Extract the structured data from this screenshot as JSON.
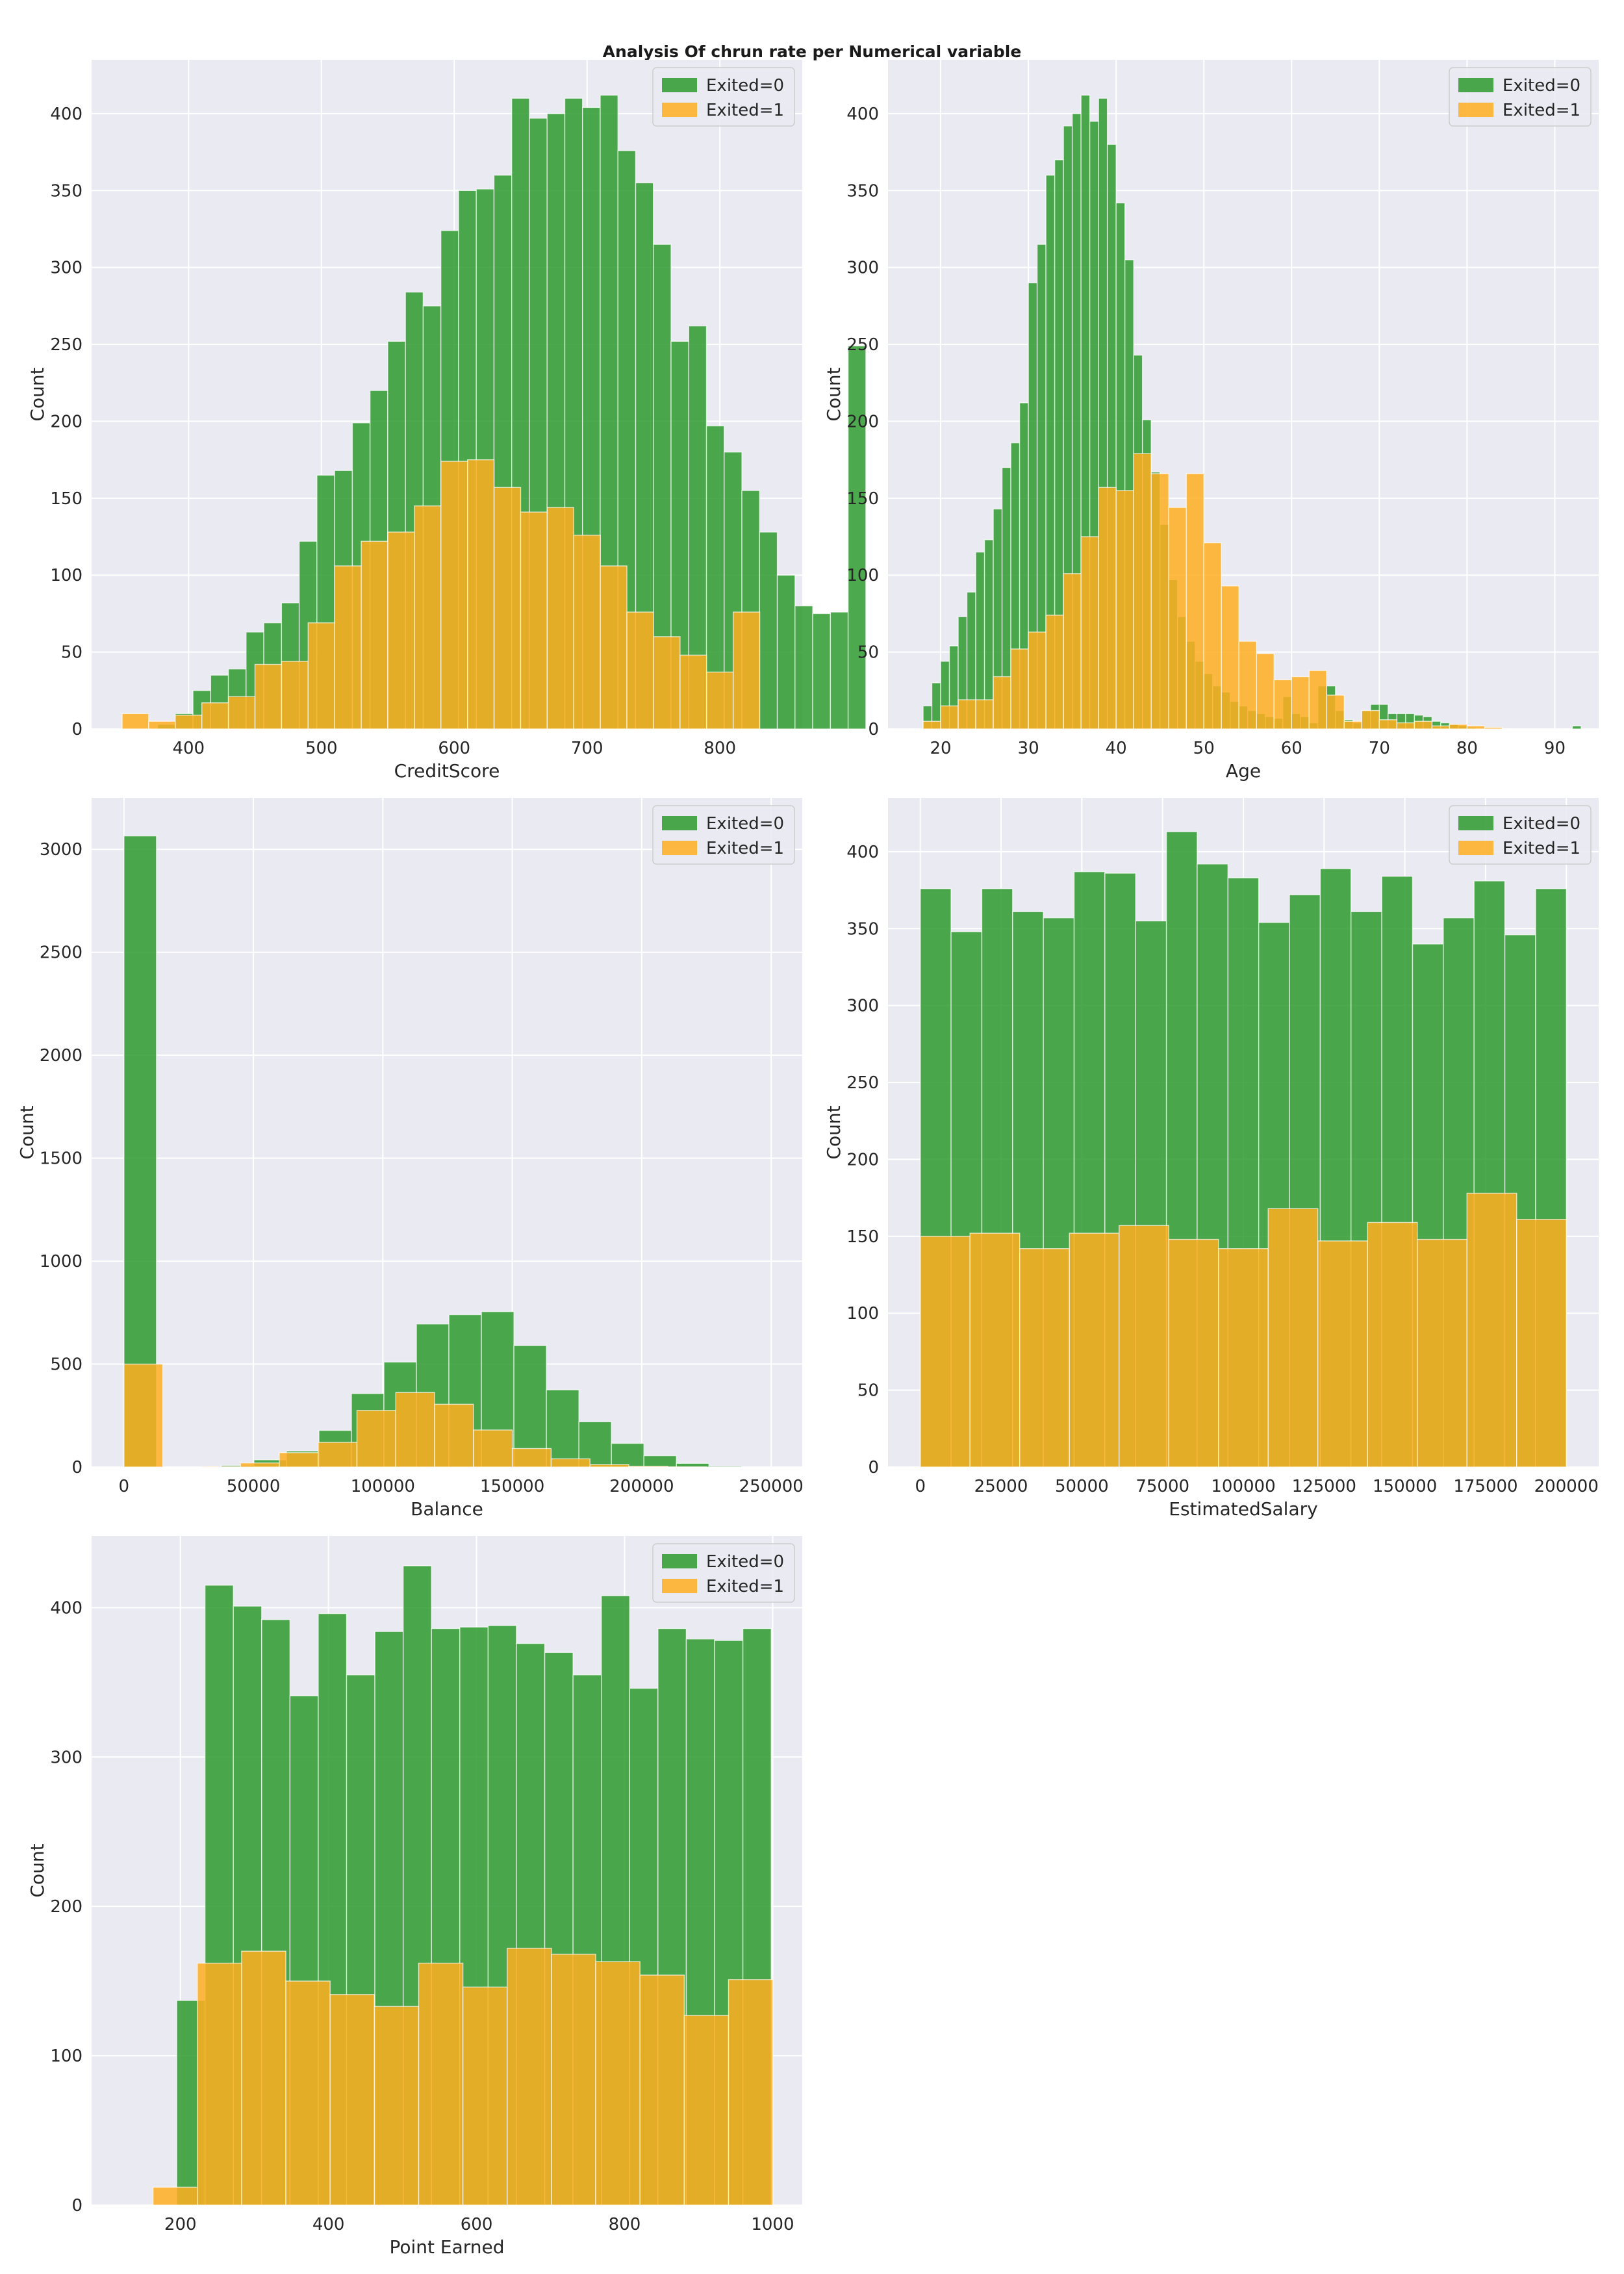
{
  "figure_title": "Analysis Of chrun rate per Numerical variable",
  "colors": {
    "exited0": "#2e9a2e",
    "exited1": "#ffae22",
    "panel_bg": "#eaeaf2",
    "grid": "#ffffff"
  },
  "chart_data": [
    {
      "type": "histogram",
      "xlabel": "CreditScore",
      "ylabel": "Count",
      "xlim": [
        327,
        862
      ],
      "ylim": [
        0,
        435
      ],
      "xticks": [
        400,
        500,
        600,
        700,
        800
      ],
      "yticks": [
        0,
        50,
        100,
        150,
        200,
        250,
        300,
        350,
        400
      ],
      "legend": {
        "position": "top-right",
        "labels": [
          "Exited=0",
          "Exited=1"
        ]
      },
      "series": [
        {
          "name": "Exited=0",
          "bin_start": 350,
          "bin_width": 13.33,
          "values": [
            0,
            0,
            3,
            10,
            25,
            35,
            39,
            63,
            69,
            82,
            122,
            165,
            168,
            199,
            220,
            252,
            284,
            275,
            324,
            350,
            351,
            360,
            410,
            397,
            400,
            410,
            404,
            412,
            376,
            355,
            315,
            252,
            262,
            197,
            180,
            155,
            128,
            100,
            80,
            75,
            76,
            249
          ]
        },
        {
          "name": "Exited=1",
          "bin_start": 350,
          "bin_width": 20.0,
          "values": [
            10,
            5,
            9,
            17,
            21,
            42,
            44,
            69,
            106,
            122,
            128,
            145,
            174,
            175,
            157,
            141,
            144,
            126,
            106,
            76,
            60,
            48,
            37,
            76
          ]
        }
      ]
    },
    {
      "type": "histogram",
      "xlabel": "Age",
      "ylabel": "Count",
      "xlim": [
        14,
        95
      ],
      "ylim": [
        0,
        435
      ],
      "xticks": [
        20,
        30,
        40,
        50,
        60,
        70,
        80,
        90
      ],
      "yticks": [
        0,
        50,
        100,
        150,
        200,
        250,
        300,
        350,
        400
      ],
      "legend": {
        "position": "top-right",
        "labels": [
          "Exited=0",
          "Exited=1"
        ]
      },
      "series": [
        {
          "name": "Exited=0",
          "bin_start": 18,
          "bin_width": 1,
          "values": [
            15,
            30,
            44,
            54,
            73,
            89,
            115,
            123,
            143,
            170,
            186,
            212,
            290,
            315,
            360,
            370,
            392,
            400,
            412,
            395,
            410,
            380,
            342,
            305,
            243,
            201,
            167,
            133,
            97,
            73,
            57,
            44,
            36,
            28,
            24,
            18,
            15,
            12,
            10,
            8,
            7,
            21,
            10,
            8,
            4,
            28,
            28,
            12,
            6,
            4,
            12,
            16,
            16,
            10,
            10,
            10,
            9,
            8,
            5,
            4,
            3,
            2,
            1,
            0,
            0,
            0,
            0,
            0,
            0,
            0,
            0,
            0,
            0,
            0,
            2
          ]
        },
        {
          "name": "Exited=1",
          "bin_start": 18,
          "bin_width": 2,
          "values": [
            5,
            15,
            19,
            19,
            34,
            52,
            63,
            74,
            101,
            125,
            157,
            155,
            179,
            166,
            144,
            166,
            121,
            93,
            57,
            49,
            32,
            34,
            38,
            22,
            5,
            12,
            6,
            4,
            5,
            2,
            3,
            2,
            1
          ]
        }
      ]
    },
    {
      "type": "histogram",
      "xlabel": "Balance",
      "ylabel": "Count",
      "xlim": [
        -12500,
        262000
      ],
      "ylim": [
        0,
        3250
      ],
      "xticks": [
        0,
        50000,
        100000,
        150000,
        200000,
        250000
      ],
      "yticks": [
        0,
        500,
        1000,
        1500,
        2000,
        2500,
        3000
      ],
      "legend": {
        "position": "top-right",
        "labels": [
          "Exited=0",
          "Exited=1"
        ]
      },
      "series": [
        {
          "name": "Exited=0",
          "bin_start": 0,
          "bin_width": 12552,
          "values": [
            3065,
            0,
            0,
            8,
            35,
            78,
            178,
            357,
            510,
            695,
            740,
            755,
            590,
            375,
            220,
            115,
            55,
            18,
            4,
            0
          ]
        },
        {
          "name": "Exited=1",
          "bin_start": 0,
          "bin_width": 15000,
          "values": [
            500,
            0,
            2,
            20,
            70,
            120,
            275,
            362,
            305,
            180,
            90,
            40,
            12,
            4,
            1
          ]
        }
      ]
    },
    {
      "type": "histogram",
      "xlabel": "EstimatedSalary",
      "ylabel": "Count",
      "xlim": [
        -10000,
        210000
      ],
      "ylim": [
        0,
        435
      ],
      "xticks": [
        0,
        25000,
        50000,
        75000,
        100000,
        125000,
        150000,
        175000,
        200000
      ],
      "yticks": [
        0,
        50,
        100,
        150,
        200,
        250,
        300,
        350,
        400
      ],
      "legend": {
        "position": "top-right",
        "labels": [
          "Exited=0",
          "Exited=1"
        ]
      },
      "series": [
        {
          "name": "Exited=0",
          "bin_start": 0,
          "bin_width": 9523.8,
          "values": [
            376,
            348,
            376,
            361,
            357,
            387,
            386,
            355,
            413,
            392,
            383,
            354,
            372,
            389,
            361,
            384,
            340,
            357,
            381,
            346,
            376
          ]
        },
        {
          "name": "Exited=1",
          "bin_start": 0,
          "bin_width": 15384.6,
          "values": [
            150,
            152,
            142,
            152,
            157,
            148,
            142,
            168,
            147,
            159,
            148,
            178,
            161
          ]
        }
      ]
    },
    {
      "type": "histogram",
      "xlabel": "Point Earned",
      "ylabel": "Count",
      "xlim": [
        80,
        1040
      ],
      "ylim": [
        0,
        448
      ],
      "xticks": [
        200,
        400,
        600,
        800,
        1000
      ],
      "yticks": [
        0,
        100,
        200,
        300,
        400
      ],
      "legend": {
        "position": "top-right",
        "labels": [
          "Exited=0",
          "Exited=1"
        ]
      },
      "series": [
        {
          "name": "Exited=0",
          "bin_start": 195,
          "bin_width": 38.24,
          "values": [
            137,
            415,
            401,
            392,
            341,
            396,
            355,
            384,
            428,
            386,
            387,
            388,
            376,
            370,
            355,
            408,
            346,
            386,
            379,
            378,
            386
          ]
        },
        {
          "name": "Exited=1",
          "bin_start": 163,
          "bin_width": 59.8,
          "values": [
            12,
            162,
            170,
            150,
            141,
            133,
            162,
            146,
            172,
            168,
            163,
            154,
            127,
            151
          ]
        }
      ]
    }
  ]
}
